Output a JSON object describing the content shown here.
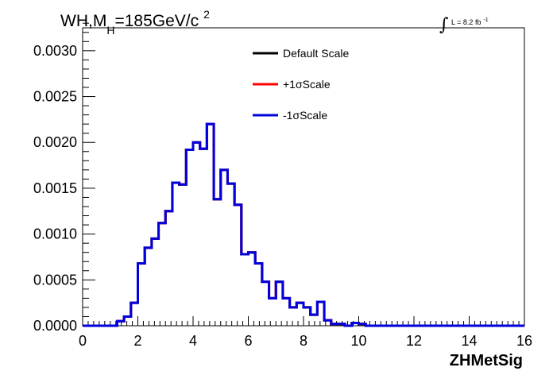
{
  "chart_data": {
    "type": "line",
    "title": {
      "prefix": "WH,M",
      "subscript": "H",
      "middle": "=185GeV/c",
      "superscript": "2"
    },
    "luminosity": {
      "text": "L = 8.2 fb",
      "superscript": "-1"
    },
    "xlabel": "ZHMetSig",
    "ylabel": "",
    "xlim": [
      0,
      16
    ],
    "ylim": [
      0,
      0.00325
    ],
    "x_ticks": [
      {
        "value": 0,
        "label": "0"
      },
      {
        "value": 2,
        "label": "2"
      },
      {
        "value": 4,
        "label": "4"
      },
      {
        "value": 6,
        "label": "6"
      },
      {
        "value": 8,
        "label": "8"
      },
      {
        "value": 10,
        "label": "10"
      },
      {
        "value": 12,
        "label": "12"
      },
      {
        "value": 14,
        "label": "14"
      },
      {
        "value": 16,
        "label": "16"
      }
    ],
    "y_ticks": [
      {
        "value": 0.0,
        "label": "0.0000"
      },
      {
        "value": 0.0005,
        "label": "0.0005"
      },
      {
        "value": 0.001,
        "label": "0.0010"
      },
      {
        "value": 0.0015,
        "label": "0.0015"
      },
      {
        "value": 0.002,
        "label": "0.0020"
      },
      {
        "value": 0.0025,
        "label": "0.0025"
      },
      {
        "value": 0.003,
        "label": "0.0030"
      }
    ],
    "bin_edges_start": 0,
    "bin_width": 0.25,
    "bin_values": [
      0,
      0,
      0,
      0,
      0,
      5e-05,
      0.0001,
      0.00025,
      0.00068,
      0.00085,
      0.00095,
      0.00112,
      0.00125,
      0.00156,
      0.00154,
      0.00192,
      0.002,
      0.00193,
      0.0022,
      0.00138,
      0.0017,
      0.00155,
      0.00132,
      0.00078,
      0.0008,
      0.00068,
      0.00048,
      0.0003,
      0.00048,
      0.0003,
      0.0002,
      0.00025,
      0.0002,
      0.00012,
      0.00026,
      6e-05,
      2e-05,
      2e-05,
      0,
      3e-05,
      2e-05,
      0,
      0,
      0,
      0,
      0,
      0,
      0,
      0,
      0,
      0,
      0,
      0,
      0,
      0,
      0,
      0,
      0,
      0,
      0,
      0,
      0,
      0,
      0
    ],
    "series": [
      {
        "name": "Default Scale",
        "color": "#000000"
      },
      {
        "name": "+1σScale",
        "color": "#ff0000"
      },
      {
        "name": "-1σScale",
        "color": "#0000dd"
      }
    ],
    "legend_position": "top-right",
    "grid": false
  }
}
